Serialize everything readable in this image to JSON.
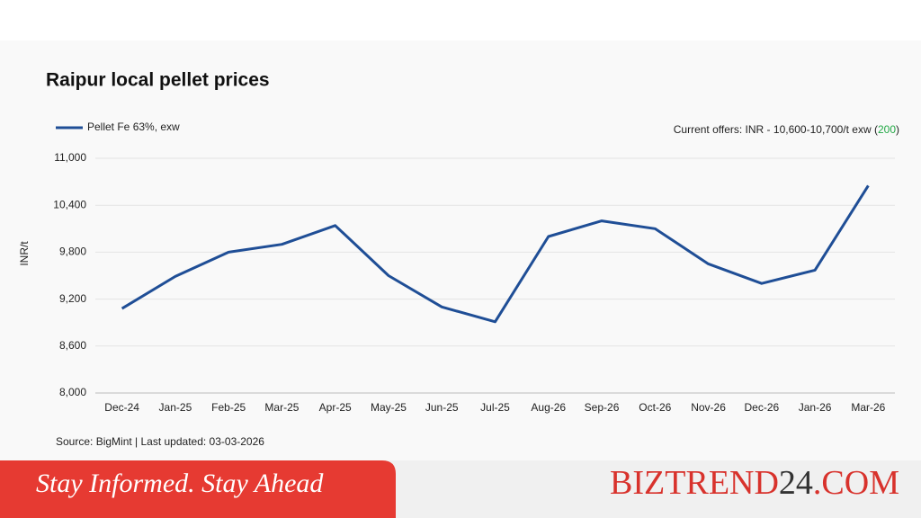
{
  "chart_data": {
    "type": "line",
    "title": "Raipur local pellet prices",
    "annotation": {
      "prefix": "Current offers: INR - 10,600-10,700/t exw (",
      "change": "200",
      "suffix": ")"
    },
    "y_label": "INR/t",
    "source": "Source: BigMint | Last updated: 03-03-2026",
    "categories": [
      "Dec-24",
      "Jan-25",
      "Feb-25",
      "Mar-25",
      "Apr-25",
      "May-25",
      "Jun-25",
      "Jul-25",
      "Aug-26",
      "Sep-26",
      "Oct-26",
      "Nov-26",
      "Dec-26",
      "Jan-26",
      "Mar-26"
    ],
    "series": [
      {
        "name": "Pellet Fe 63%, exw",
        "color": "#1f4e96",
        "values": [
          9080,
          9490,
          9800,
          9900,
          10140,
          9500,
          9100,
          8910,
          10000,
          10200,
          10100,
          9650,
          9400,
          9570,
          10650
        ]
      }
    ],
    "ylim": [
      8000,
      11000
    ],
    "yticks": [
      {
        "value": 8000,
        "label": "8,000"
      },
      {
        "value": 8600,
        "label": "8,600"
      },
      {
        "value": 9200,
        "label": "9,200"
      },
      {
        "value": 9800,
        "label": "9,800"
      },
      {
        "value": 10400,
        "label": "10,400"
      },
      {
        "value": 11000,
        "label": "11,000"
      }
    ],
    "grid": true
  },
  "banner": {
    "tagline": "Stay Informed. Stay Ahead",
    "brand": [
      "BIZTREND",
      "24",
      ".COM"
    ]
  }
}
